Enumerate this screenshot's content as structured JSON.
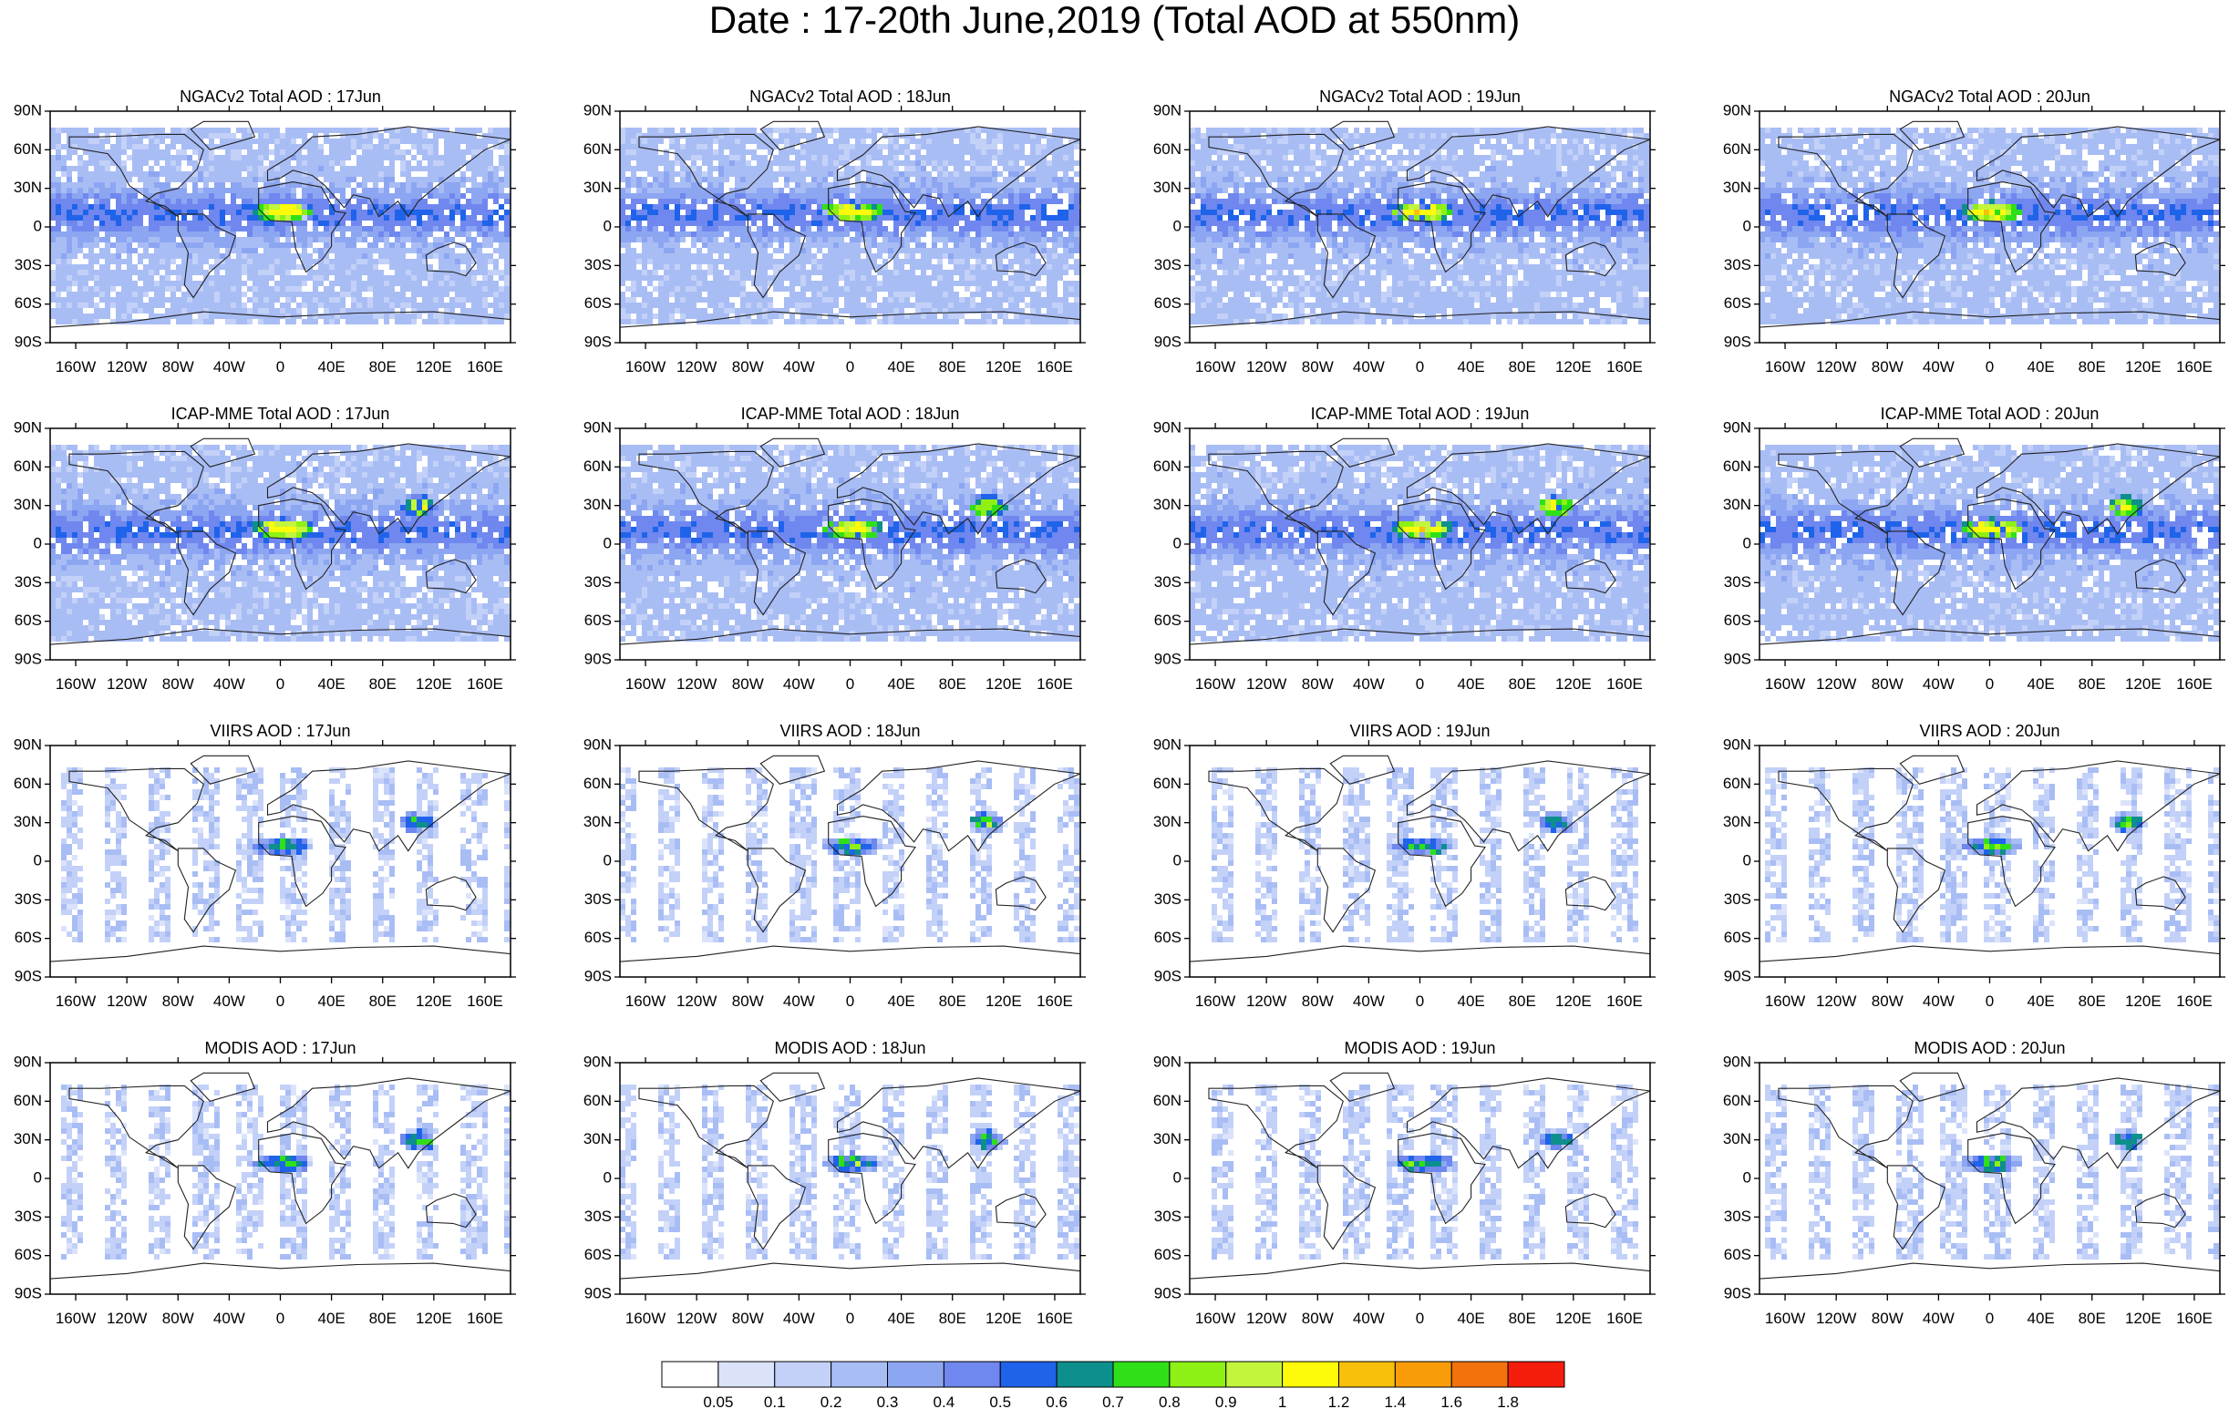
{
  "title": "Date : 17-20th June,2019 (Total AOD at 550nm)",
  "rows": [
    {
      "source": "NGACv2",
      "panels": [
        "NGACv2 Total AOD : 17Jun",
        "NGACv2 Total AOD : 18Jun",
        "NGACv2 Total AOD : 19Jun",
        "NGACv2 Total AOD : 20Jun"
      ]
    },
    {
      "source": "ICAP-MME",
      "panels": [
        "ICAP-MME Total AOD : 17Jun",
        "ICAP-MME Total AOD : 18Jun",
        "ICAP-MME Total AOD : 19Jun",
        "ICAP-MME Total AOD : 20Jun"
      ]
    },
    {
      "source": "VIIRS",
      "panels": [
        "VIIRS AOD : 17Jun",
        "VIIRS AOD : 18Jun",
        "VIIRS AOD : 19Jun",
        "VIIRS AOD : 20Jun"
      ]
    },
    {
      "source": "MODIS",
      "panels": [
        "MODIS AOD : 17Jun",
        "MODIS AOD : 18Jun",
        "MODIS AOD : 19Jun",
        "MODIS AOD : 20Jun"
      ]
    }
  ],
  "lat_ticks": [
    "90N",
    "60N",
    "30N",
    "0",
    "30S",
    "60S",
    "90S"
  ],
  "lat_values": [
    90,
    60,
    30,
    0,
    -30,
    -60,
    -90
  ],
  "lon_ticks": [
    "160W",
    "120W",
    "80W",
    "40W",
    "0",
    "40E",
    "80E",
    "120E",
    "160E"
  ],
  "lon_values": [
    -160,
    -120,
    -80,
    -40,
    0,
    40,
    80,
    120,
    160
  ],
  "colorbar": {
    "labels": [
      "0.05",
      "0.1",
      "0.2",
      "0.3",
      "0.4",
      "0.5",
      "0.6",
      "0.7",
      "0.8",
      "0.9",
      "1",
      "1.2",
      "1.4",
      "1.6",
      "1.8"
    ],
    "colors": [
      "#ffffff",
      "#dbe3fb",
      "#c3d1f8",
      "#a9bdf5",
      "#8da6f2",
      "#6f87ee",
      "#1f63ea",
      "#0d8f8c",
      "#2fe019",
      "#8ef014",
      "#c2f53b",
      "#fdfb09",
      "#f8c00a",
      "#f99c0a",
      "#f4720c",
      "#f41d0b"
    ]
  }
}
